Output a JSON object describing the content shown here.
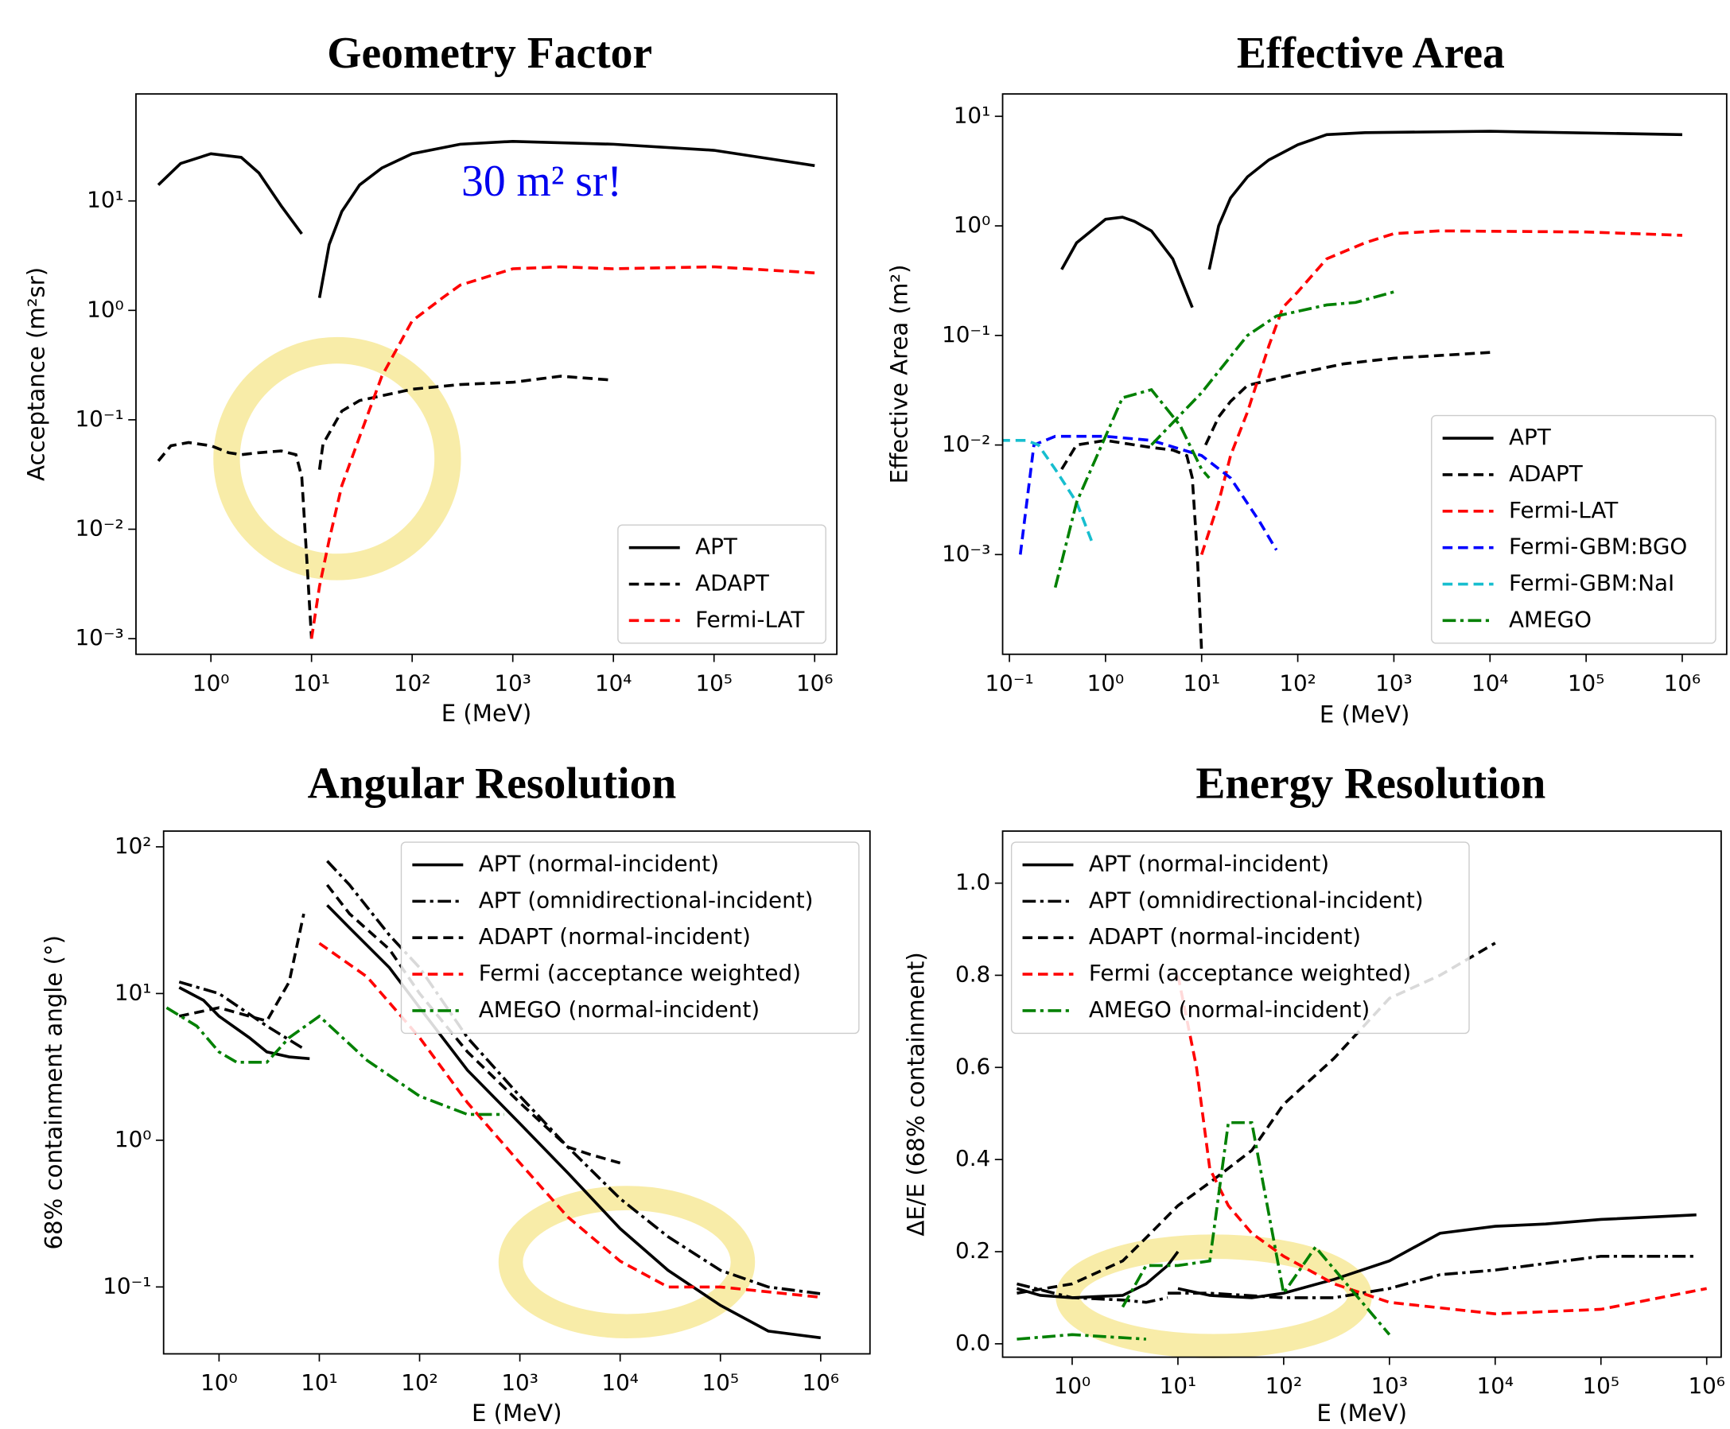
{
  "chart_data": [
    {
      "type": "line",
      "title": "Geometry Factor",
      "xlabel": "E (MeV)",
      "ylabel": "Acceptance (m²sr)",
      "annotation": "30 m² sr!",
      "annotation_color": "#0000ee",
      "xlog": true,
      "ylog": true,
      "legend": "lower right",
      "xlim": [
        0.18,
        1660000
      ],
      "ylim": [
        0.00072,
        95
      ],
      "xticks": [
        {
          "value": 1,
          "label": "10⁰"
        },
        {
          "value": 10,
          "label": "10¹"
        },
        {
          "value": 100,
          "label": "10²"
        },
        {
          "value": 1000,
          "label": "10³"
        },
        {
          "value": 10000,
          "label": "10⁴"
        },
        {
          "value": 100000,
          "label": "10⁵"
        },
        {
          "value": 1000000,
          "label": "10⁶"
        }
      ],
      "yticks": [
        {
          "value": 0.001,
          "label": "10⁻³"
        },
        {
          "value": 0.01,
          "label": "10⁻²"
        },
        {
          "value": 0.1,
          "label": "10⁻¹"
        },
        {
          "value": 1,
          "label": "10⁰"
        },
        {
          "value": 10,
          "label": "10¹"
        }
      ],
      "series": [
        {
          "name": "APT",
          "color": "#000000",
          "dash": "solid",
          "x": [
            0.3,
            0.5,
            1,
            2,
            3,
            5,
            8,
            null,
            12,
            15,
            20,
            30,
            50,
            100,
            300,
            1000,
            10000,
            100000,
            1000000
          ],
          "values": [
            14,
            22,
            27,
            25,
            18,
            9,
            5,
            null,
            1.3,
            4,
            8,
            14,
            20,
            27,
            33,
            35,
            33,
            29,
            21
          ]
        },
        {
          "name": "ADAPT",
          "color": "#000000",
          "dash": "dashed",
          "x": [
            0.3,
            0.4,
            0.6,
            1,
            1.5,
            2,
            3,
            5,
            7,
            8,
            9,
            10,
            null,
            12,
            13,
            20,
            30,
            100,
            300,
            1000,
            3000,
            10000
          ],
          "values": [
            0.042,
            0.058,
            0.062,
            0.058,
            0.05,
            0.048,
            0.05,
            0.052,
            0.048,
            0.03,
            0.005,
            0.001,
            null,
            0.035,
            0.06,
            0.12,
            0.15,
            0.19,
            0.21,
            0.22,
            0.25,
            0.23
          ]
        },
        {
          "name": "Fermi-LAT",
          "color": "#ff0000",
          "dash": "dashed",
          "x": [
            10,
            12,
            15,
            20,
            30,
            50,
            100,
            200,
            300,
            1000,
            3000,
            10000,
            100000,
            1000000
          ],
          "values": [
            0.001,
            0.003,
            0.008,
            0.025,
            0.07,
            0.25,
            0.8,
            1.3,
            1.7,
            2.4,
            2.5,
            2.4,
            2.5,
            2.2
          ]
        }
      ]
    },
    {
      "type": "line",
      "title": "Effective Area",
      "xlabel": "E (MeV)",
      "ylabel": "Effective Area (m²)",
      "xlog": true,
      "ylog": true,
      "legend": "lower right",
      "xlim": [
        0.085,
        2900000
      ],
      "ylim": [
        0.000123,
        16
      ],
      "xticks": [
        {
          "value": 0.1,
          "label": "10⁻¹"
        },
        {
          "value": 1,
          "label": "10⁰"
        },
        {
          "value": 10,
          "label": "10¹"
        },
        {
          "value": 100,
          "label": "10²"
        },
        {
          "value": 1000,
          "label": "10³"
        },
        {
          "value": 10000,
          "label": "10⁴"
        },
        {
          "value": 100000,
          "label": "10⁵"
        },
        {
          "value": 1000000,
          "label": "10⁶"
        }
      ],
      "yticks": [
        {
          "value": 0.001,
          "label": "10⁻³"
        },
        {
          "value": 0.01,
          "label": "10⁻²"
        },
        {
          "value": 0.1,
          "label": "10⁻¹"
        },
        {
          "value": 1,
          "label": "10⁰"
        },
        {
          "value": 10,
          "label": "10¹"
        }
      ],
      "series": [
        {
          "name": "APT",
          "color": "#000000",
          "dash": "solid",
          "x": [
            0.35,
            0.5,
            1,
            1.5,
            2,
            3,
            5,
            8,
            null,
            12,
            15,
            20,
            30,
            50,
            100,
            200,
            500,
            10000,
            1000000
          ],
          "values": [
            0.4,
            0.7,
            1.15,
            1.2,
            1.1,
            0.9,
            0.5,
            0.18,
            null,
            0.4,
            1,
            1.8,
            2.8,
            4,
            5.5,
            6.8,
            7.1,
            7.3,
            6.8
          ]
        },
        {
          "name": "ADAPT",
          "color": "#000000",
          "dash": "dashed",
          "x": [
            0.35,
            0.5,
            1,
            3,
            5,
            7,
            8,
            9,
            10,
            null,
            11,
            15,
            20,
            30,
            100,
            300,
            1000,
            10000
          ],
          "values": [
            0.006,
            0.01,
            0.011,
            0.0095,
            0.009,
            0.008,
            0.005,
            0.001,
            0.00013,
            null,
            0.01,
            0.018,
            0.025,
            0.035,
            0.045,
            0.055,
            0.062,
            0.07
          ]
        },
        {
          "name": "Fermi-LAT",
          "color": "#ff0000",
          "dash": "dashed",
          "x": [
            10,
            15,
            20,
            30,
            50,
            70,
            100,
            200,
            500,
            1000,
            3000,
            100000,
            1000000
          ],
          "values": [
            0.001,
            0.003,
            0.008,
            0.02,
            0.08,
            0.18,
            0.25,
            0.5,
            0.7,
            0.85,
            0.9,
            0.88,
            0.82
          ]
        },
        {
          "name": "Fermi-GBM:BGO",
          "color": "#0000ff",
          "dash": "dashed",
          "x": [
            0.13,
            0.18,
            0.3,
            1,
            3,
            10,
            20,
            40,
            60
          ],
          "values": [
            0.001,
            0.01,
            0.012,
            0.012,
            0.011,
            0.008,
            0.005,
            0.002,
            0.0011
          ]
        },
        {
          "name": "Fermi-GBM:NaI",
          "color": "#17becf",
          "dash": "dashed",
          "x": [
            0.08,
            0.15,
            0.2,
            0.3,
            0.5,
            0.75
          ],
          "values": [
            0.011,
            0.011,
            0.01,
            0.006,
            0.003,
            0.0012
          ]
        },
        {
          "name": "AMEGO",
          "color": "#008000",
          "dash": "dashdot",
          "x": [
            0.3,
            0.5,
            1,
            1.5,
            3,
            6,
            10,
            12,
            null,
            3,
            10,
            30,
            60,
            200,
            400,
            1000
          ],
          "values": [
            0.0005,
            0.003,
            0.012,
            0.027,
            0.032,
            0.015,
            0.006,
            0.005,
            null,
            0.01,
            0.03,
            0.1,
            0.15,
            0.19,
            0.2,
            0.25
          ]
        }
      ]
    },
    {
      "type": "line",
      "title": "Angular Resolution",
      "xlabel": "E (MeV)",
      "ylabel": "68% containment angle (°)",
      "xlog": true,
      "ylog": true,
      "legend": "upper right",
      "xlim": [
        0.28,
        3100000
      ],
      "ylim": [
        0.035,
        128
      ],
      "xticks": [
        {
          "value": 1,
          "label": "10⁰"
        },
        {
          "value": 10,
          "label": "10¹"
        },
        {
          "value": 100,
          "label": "10²"
        },
        {
          "value": 1000,
          "label": "10³"
        },
        {
          "value": 10000,
          "label": "10⁴"
        },
        {
          "value": 100000,
          "label": "10⁵"
        },
        {
          "value": 1000000,
          "label": "10⁶"
        }
      ],
      "yticks": [
        {
          "value": 0.1,
          "label": "10⁻¹"
        },
        {
          "value": 1,
          "label": "10⁰"
        },
        {
          "value": 10,
          "label": "10¹"
        },
        {
          "value": 100,
          "label": "10²"
        }
      ],
      "series": [
        {
          "name": "APT (normal-incident)",
          "color": "#000000",
          "dash": "solid",
          "x": [
            0.4,
            0.7,
            1,
            2,
            3,
            5,
            8,
            null,
            12,
            20,
            50,
            100,
            300,
            1000,
            3000,
            10000,
            30000,
            100000,
            300000,
            1000000
          ],
          "values": [
            11,
            9,
            7,
            5,
            4,
            3.7,
            3.6,
            null,
            40,
            28,
            15,
            8,
            3,
            1.3,
            0.6,
            0.25,
            0.13,
            0.075,
            0.05,
            0.045
          ]
        },
        {
          "name": "APT (omnidirectional-incident)",
          "color": "#000000",
          "dash": "dashdot",
          "x": [
            0.4,
            1,
            3,
            7,
            null,
            12,
            20,
            50,
            100,
            300,
            1000,
            3000,
            10000,
            30000,
            100000,
            300000,
            1000000
          ],
          "values": [
            12,
            10,
            6,
            4.2,
            null,
            80,
            55,
            25,
            15,
            5,
            2,
            0.9,
            0.4,
            0.22,
            0.13,
            0.1,
            0.09
          ]
        },
        {
          "name": "ADAPT (normal-incident)",
          "color": "#000000",
          "dash": "dashed",
          "x": [
            0.4,
            1,
            2,
            3,
            5,
            7,
            null,
            12,
            20,
            50,
            100,
            300,
            1000,
            3000,
            5000,
            10000
          ],
          "values": [
            7,
            8,
            7,
            6.5,
            12,
            35,
            null,
            55,
            35,
            20,
            10,
            4,
            1.8,
            0.9,
            0.8,
            0.7
          ]
        },
        {
          "name": "Fermi (acceptance weighted)",
          "color": "#ff0000",
          "dash": "dashed",
          "x": [
            10,
            30,
            100,
            300,
            1000,
            3000,
            10000,
            30000,
            100000,
            1000000
          ],
          "values": [
            22,
            13,
            5,
            1.8,
            0.7,
            0.3,
            0.15,
            0.1,
            0.1,
            0.085
          ]
        },
        {
          "name": "AMEGO (normal-incident)",
          "color": "#008000",
          "dash": "dashdot",
          "x": [
            0.3,
            0.6,
            1,
            1.5,
            3,
            5,
            10,
            30,
            100,
            300,
            700
          ],
          "values": [
            8,
            6,
            4,
            3.4,
            3.4,
            5,
            7,
            3.5,
            2,
            1.5,
            1.5
          ]
        }
      ]
    },
    {
      "type": "line",
      "title": "Energy Resolution",
      "xlabel": "E (MeV)",
      "ylabel": "ΔE/E (68% containment)",
      "xlog": true,
      "ylog": false,
      "legend": "upper left",
      "xlim": [
        0.22,
        1370000
      ],
      "ylim": [
        -0.029,
        1.113
      ],
      "xticks": [
        {
          "value": 1,
          "label": "10⁰"
        },
        {
          "value": 10,
          "label": "10¹"
        },
        {
          "value": 100,
          "label": "10²"
        },
        {
          "value": 1000,
          "label": "10³"
        },
        {
          "value": 10000,
          "label": "10⁴"
        },
        {
          "value": 100000,
          "label": "10⁵"
        },
        {
          "value": 1000000,
          "label": "10⁶"
        }
      ],
      "yticks": [
        {
          "value": 0,
          "label": "0.0"
        },
        0.2,
        0.4,
        0.6,
        0.8,
        {
          "value": 1,
          "label": "1.0"
        }
      ],
      "series": [
        {
          "name": "APT (normal-incident)",
          "color": "#000000",
          "dash": "solid",
          "x": [
            0.3,
            0.5,
            1,
            3,
            5,
            8,
            10,
            null,
            10,
            20,
            50,
            100,
            300,
            1000,
            3000,
            10000,
            30000,
            100000,
            800000
          ],
          "values": [
            0.12,
            0.105,
            0.1,
            0.105,
            0.13,
            0.17,
            0.2,
            null,
            0.12,
            0.105,
            0.1,
            0.11,
            0.14,
            0.18,
            0.24,
            0.255,
            0.26,
            0.27,
            0.28
          ]
        },
        {
          "name": "APT (omnidirectional-incident)",
          "color": "#000000",
          "dash": "dashdot",
          "x": [
            0.3,
            1,
            3,
            5,
            8,
            null,
            8,
            20,
            100,
            300,
            1000,
            3000,
            10000,
            100000,
            800000
          ],
          "values": [
            0.13,
            0.1,
            0.095,
            0.09,
            0.1,
            null,
            0.11,
            0.11,
            0.1,
            0.1,
            0.12,
            0.15,
            0.16,
            0.19,
            0.19
          ]
        },
        {
          "name": "ADAPT (normal-incident)",
          "color": "#000000",
          "dash": "dashed",
          "x": [
            0.3,
            1,
            3,
            5,
            10,
            20,
            50,
            100,
            300,
            1000,
            3000,
            10000
          ],
          "values": [
            0.11,
            0.13,
            0.18,
            0.23,
            0.3,
            0.35,
            0.42,
            0.52,
            0.62,
            0.75,
            0.8,
            0.87
          ]
        },
        {
          "name": "Fermi (acceptance weighted)",
          "color": "#ff0000",
          "dash": "dashed",
          "x": [
            10,
            15,
            20,
            30,
            50,
            100,
            300,
            1000,
            10000,
            100000,
            1000000
          ],
          "values": [
            0.8,
            0.6,
            0.38,
            0.3,
            0.24,
            0.19,
            0.13,
            0.09,
            0.065,
            0.075,
            0.12
          ]
        },
        {
          "name": "AMEGO (normal-incident)",
          "color": "#008000",
          "dash": "dashdot",
          "x": [
            0.3,
            1,
            5,
            null,
            3,
            5,
            10,
            20,
            30,
            50,
            100,
            200,
            1000
          ],
          "values": [
            0.01,
            0.02,
            0.01,
            null,
            0.08,
            0.17,
            0.17,
            0.18,
            0.48,
            0.48,
            0.11,
            0.21,
            0.02
          ]
        }
      ]
    }
  ]
}
